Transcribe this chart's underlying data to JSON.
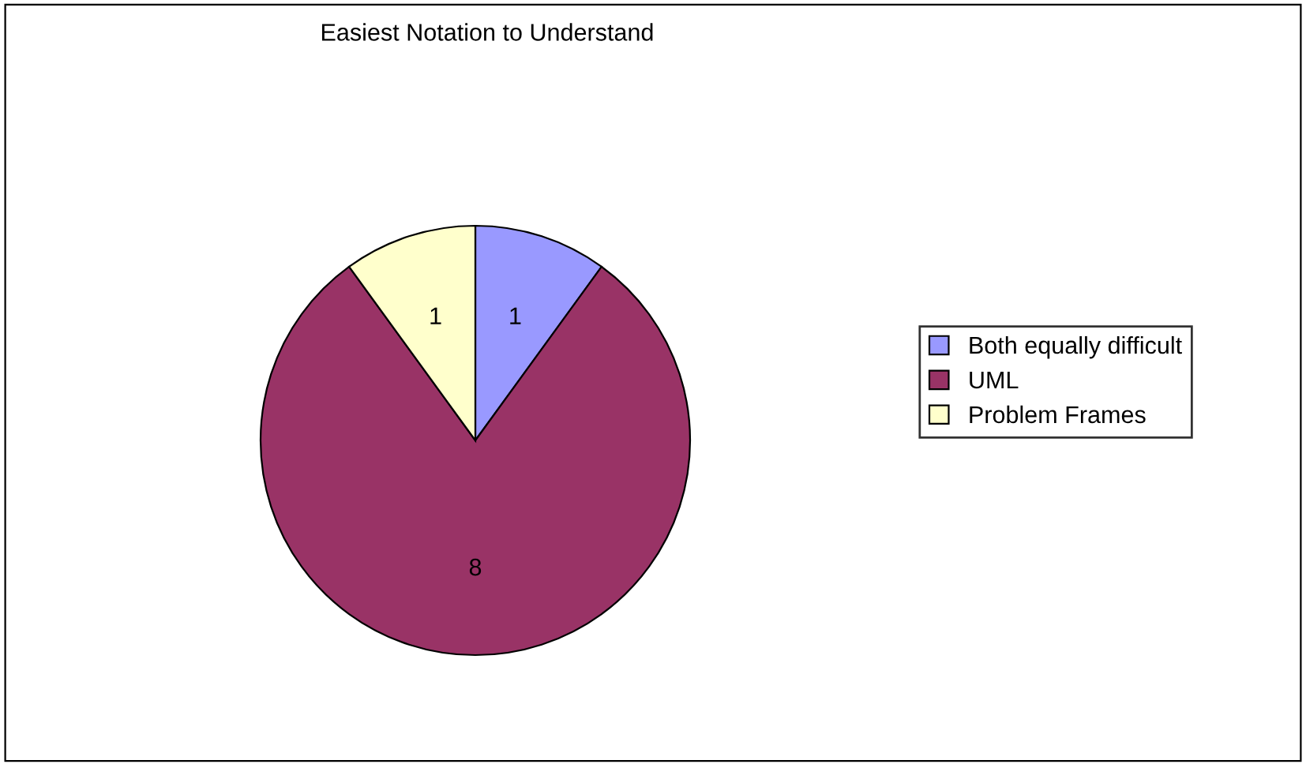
{
  "chart_data": {
    "type": "pie",
    "title": "Easiest Notation to Understand",
    "categories": [
      "Both equally difficult",
      "UML",
      "Problem Frames"
    ],
    "values": [
      1,
      8,
      1
    ],
    "colors": [
      "#9999ff",
      "#993366",
      "#ffffcc"
    ],
    "data_labels": true,
    "legend": "right"
  }
}
